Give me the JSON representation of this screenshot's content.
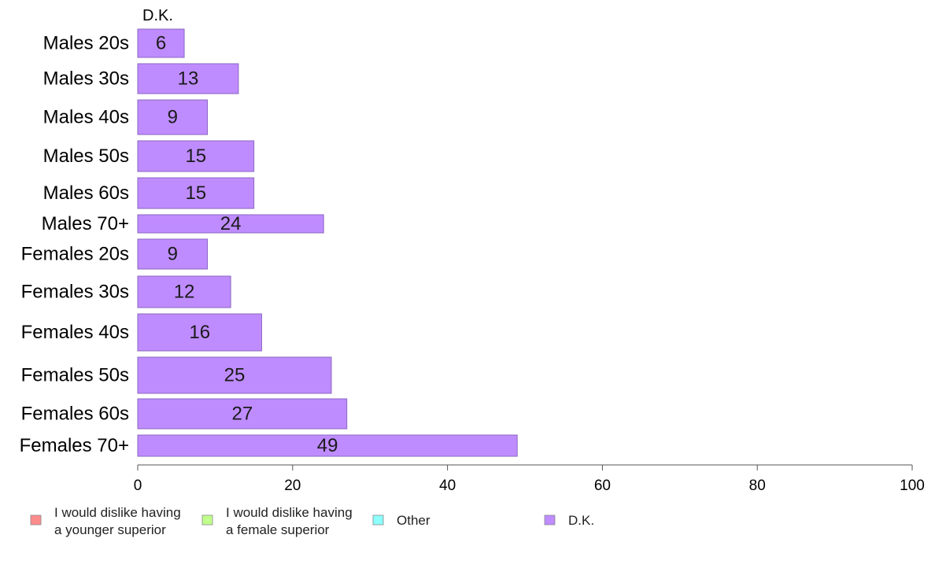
{
  "chart_data": {
    "type": "bar",
    "orientation": "horizontal",
    "stacked": true,
    "column_header": "D.K.",
    "categories": [
      "Males 20s",
      "Males 30s",
      "Males 40s",
      "Males 50s",
      "Males 60s",
      "Males 70+",
      "Females 20s",
      "Females 30s",
      "Females 40s",
      "Females 50s",
      "Females 60s",
      "Females 70+"
    ],
    "series": [
      {
        "name": "I would dislike having a younger superior",
        "label_lines": [
          "I would dislike having",
          "a younger superior"
        ],
        "color": "#ff8c8c",
        "values": [
          0,
          0,
          0,
          0,
          0,
          0,
          0,
          0,
          0,
          0,
          0,
          0
        ]
      },
      {
        "name": "I would dislike having a female superior",
        "label_lines": [
          "I would dislike having",
          "a female superior"
        ],
        "color": "#c0ff8c",
        "values": [
          0,
          0,
          0,
          0,
          0,
          0,
          0,
          0,
          0,
          0,
          0,
          0
        ]
      },
      {
        "name": "Other",
        "label_lines": [
          "Other"
        ],
        "color": "#8cffff",
        "values": [
          0,
          0,
          0,
          0,
          0,
          0,
          0,
          0,
          0,
          0,
          0,
          0
        ]
      },
      {
        "name": "D.K.",
        "label_lines": [
          "D.K."
        ],
        "color": "#bf8cff",
        "values": [
          6,
          13,
          9,
          15,
          15,
          24,
          9,
          12,
          16,
          25,
          27,
          49
        ]
      }
    ],
    "xlim": [
      0,
      100
    ],
    "xticks": [
      0,
      20,
      40,
      60,
      80,
      100
    ],
    "legend_position": "bottom",
    "grid": false
  }
}
